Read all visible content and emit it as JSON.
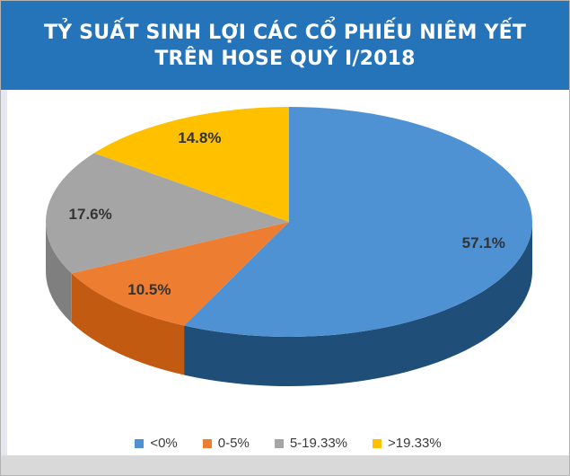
{
  "header": {
    "title_line1": "TỶ SUẤT SINH LỢI CÁC CỔ PHIẾU NIÊM YẾT",
    "title_line2": "TRÊN HOSE QUÝ I/2018"
  },
  "colors": {
    "header_bg": "#2573b8",
    "header_text": "#ffffff",
    "panel_bg": "#ffffff",
    "label_text": "#333333",
    "legend_text": "#3a3a3a"
  },
  "chart_data": {
    "type": "pie",
    "style": "3d",
    "title": "TỶ SUẤT SINH LỢI CÁC CỔ PHIẾU NIÊM YẾT TRÊN HOSE QUÝ I/2018",
    "legend_position": "bottom",
    "start_angle_deg": 0,
    "direction": "clockwise",
    "total": 100,
    "slices": [
      {
        "label": "<0%",
        "value": 57.1,
        "display": "57.1%",
        "color": "#4f92d4",
        "side_color": "#1f4e79"
      },
      {
        "label": "0-5%",
        "value": 10.5,
        "display": "10.5%",
        "color": "#ed7d31",
        "side_color": "#c25a11"
      },
      {
        "label": "5-19.33%",
        "value": 17.6,
        "display": "17.6%",
        "color": "#a5a5a5",
        "side_color": "#7f7f7f"
      },
      {
        "label": ">19.33%",
        "value": 14.8,
        "display": "14.8%",
        "color": "#ffc000",
        "side_color": "#bf8f00"
      }
    ]
  }
}
